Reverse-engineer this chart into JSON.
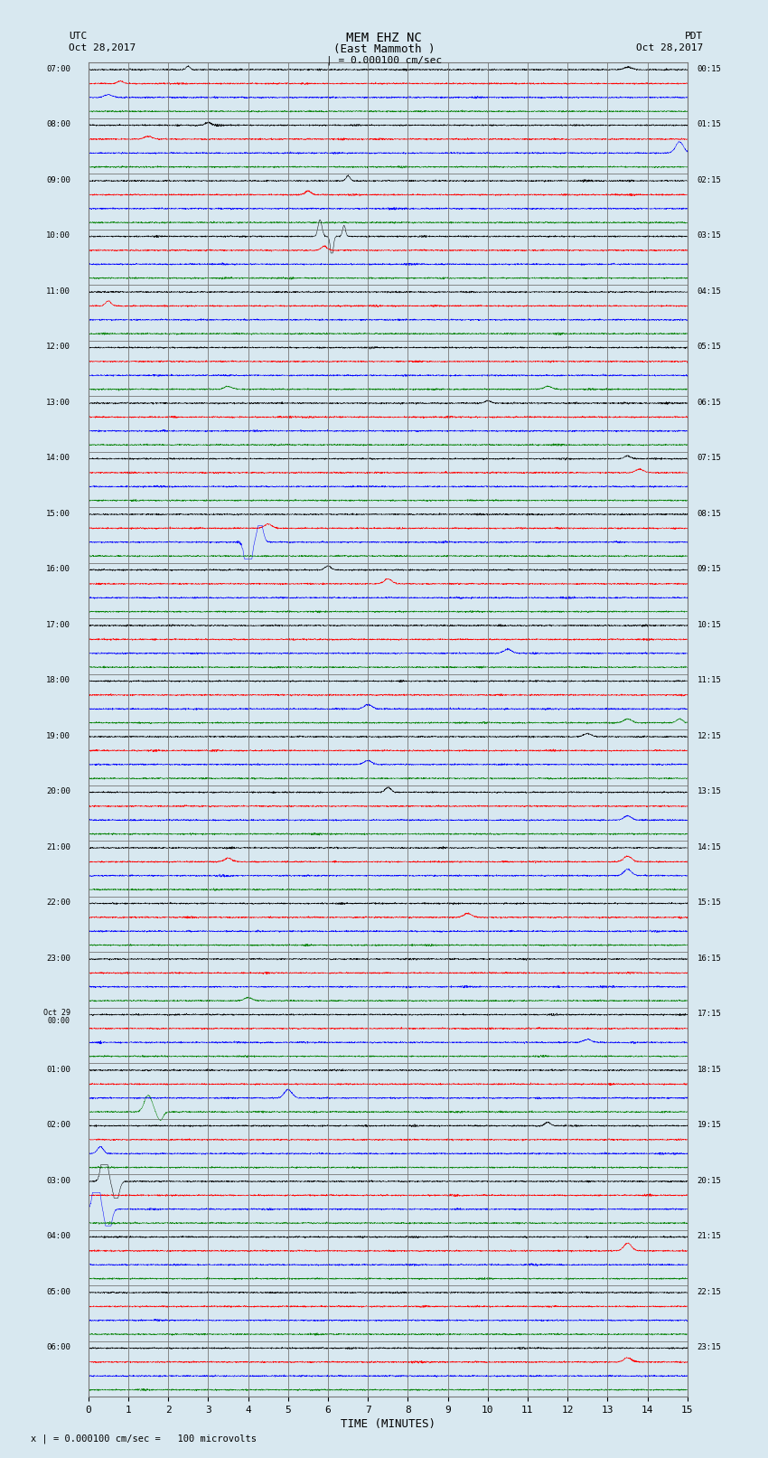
{
  "title_line1": "MEM EHZ NC",
  "title_line2": "(East Mammoth )",
  "title_line3": "| = 0.000100 cm/sec",
  "label_left_top": "UTC",
  "label_left_date": "Oct 28,2017",
  "label_right_top": "PDT",
  "label_right_date": "Oct 28,2017",
  "xlabel": "TIME (MINUTES)",
  "footnote": "x | = 0.000100 cm/sec =   100 microvolts",
  "utc_labels": [
    "07:00",
    "08:00",
    "09:00",
    "10:00",
    "11:00",
    "12:00",
    "13:00",
    "14:00",
    "15:00",
    "16:00",
    "17:00",
    "18:00",
    "19:00",
    "20:00",
    "21:00",
    "22:00",
    "23:00",
    "Oct 29\n00:00",
    "01:00",
    "02:00",
    "03:00",
    "04:00",
    "05:00",
    "06:00"
  ],
  "pdt_labels": [
    "00:15",
    "01:15",
    "02:15",
    "03:15",
    "04:15",
    "05:15",
    "06:15",
    "07:15",
    "08:15",
    "09:15",
    "10:15",
    "11:15",
    "12:15",
    "13:15",
    "14:15",
    "15:15",
    "16:15",
    "17:15",
    "18:15",
    "19:15",
    "20:15",
    "21:15",
    "22:15",
    "23:15"
  ],
  "n_rows": 24,
  "sub_per_row": 4,
  "minutes_per_row": 15,
  "bg_color": "#d8e8f0",
  "plot_bg_color": "#d8e8f0",
  "trace_colors": [
    "black",
    "red",
    "blue",
    "green"
  ],
  "grid_color": "#777777",
  "noise_amplitude": 0.025,
  "seed": 42,
  "lw": 0.35
}
